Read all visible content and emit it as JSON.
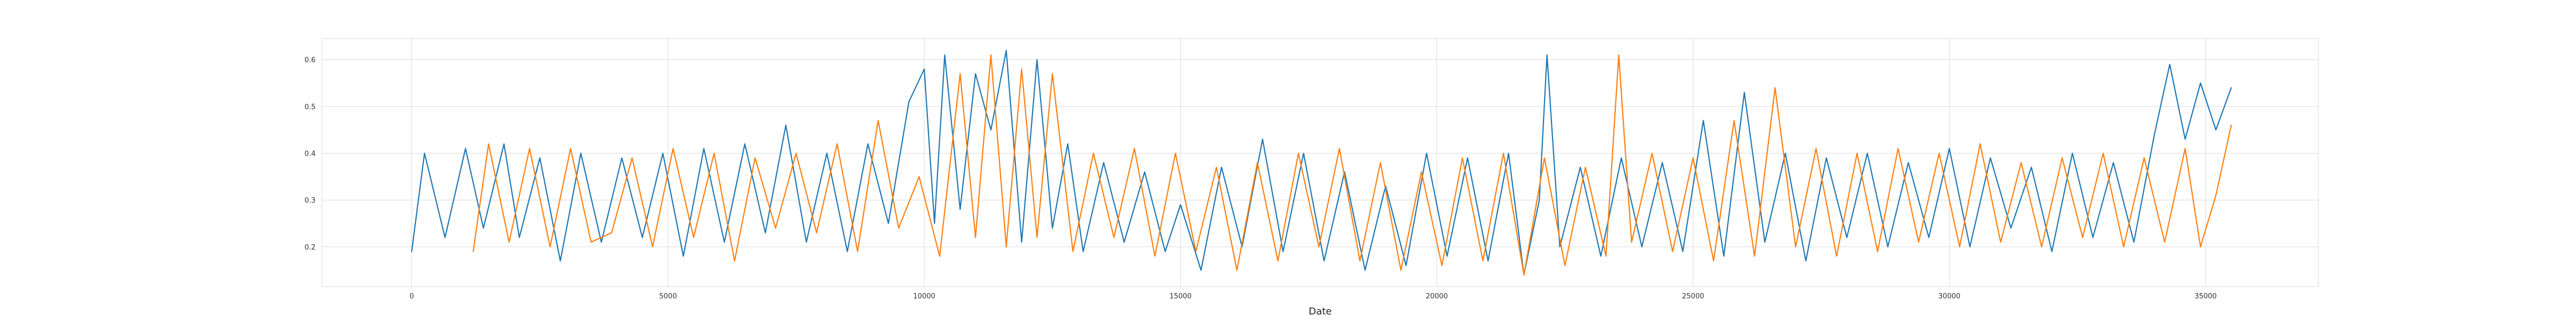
{
  "chart_data": {
    "type": "line",
    "title": "",
    "xlabel": "Date",
    "ylabel": "",
    "xlim": [
      -1750,
      37200
    ],
    "ylim": [
      0.115,
      0.645
    ],
    "grid": true,
    "legend": "none",
    "x_ticks": [
      0,
      5000,
      10000,
      15000,
      20000,
      25000,
      30000,
      35000
    ],
    "x_tick_labels": [
      "0",
      "5000",
      "10000",
      "15000",
      "20000",
      "25000",
      "30000",
      "35000"
    ],
    "y_ticks": [
      0.2,
      0.3,
      0.4,
      0.5,
      0.6
    ],
    "y_tick_labels": [
      "0.2",
      "0.3",
      "0.4",
      "0.5",
      "0.6"
    ],
    "series": [
      {
        "color": "#1f77b4",
        "x": [
          0,
          250,
          650,
          1050,
          1400,
          1800,
          2100,
          2500,
          2900,
          3300,
          3700,
          4100,
          4500,
          4900,
          5300,
          5700,
          6100,
          6500,
          6900,
          7300,
          7700,
          8100,
          8500,
          8900,
          9300,
          9700,
          10000,
          10200,
          10400,
          10700,
          11000,
          11300,
          11600,
          11900,
          12200,
          12500,
          12800,
          13100,
          13500,
          13900,
          14300,
          14700,
          15000,
          15400,
          15800,
          16200,
          16600,
          17000,
          17400,
          17800,
          18200,
          18600,
          19000,
          19400,
          19800,
          20200,
          20600,
          21000,
          21400,
          21700,
          22000,
          22150,
          22400,
          22800,
          23200,
          23600,
          24000,
          24400,
          24800,
          25200,
          25600,
          26000,
          26400,
          26800,
          27200,
          27600,
          28000,
          28400,
          28800,
          29200,
          29600,
          30000,
          30400,
          30800,
          31200,
          31600,
          32000,
          32400,
          32800,
          33200,
          33600,
          34000,
          34300,
          34600,
          34900,
          35200,
          35500
        ],
        "values": [
          0.19,
          0.4,
          0.22,
          0.41,
          0.24,
          0.42,
          0.22,
          0.39,
          0.17,
          0.4,
          0.21,
          0.39,
          0.22,
          0.4,
          0.18,
          0.41,
          0.21,
          0.42,
          0.23,
          0.46,
          0.21,
          0.4,
          0.19,
          0.42,
          0.25,
          0.51,
          0.58,
          0.25,
          0.61,
          0.28,
          0.57,
          0.45,
          0.62,
          0.21,
          0.6,
          0.24,
          0.42,
          0.19,
          0.38,
          0.21,
          0.36,
          0.19,
          0.29,
          0.15,
          0.37,
          0.2,
          0.43,
          0.19,
          0.4,
          0.17,
          0.36,
          0.15,
          0.33,
          0.16,
          0.4,
          0.18,
          0.39,
          0.17,
          0.4,
          0.14,
          0.3,
          0.61,
          0.2,
          0.37,
          0.18,
          0.39,
          0.2,
          0.38,
          0.19,
          0.47,
          0.18,
          0.53,
          0.21,
          0.4,
          0.17,
          0.39,
          0.22,
          0.4,
          0.2,
          0.38,
          0.22,
          0.41,
          0.2,
          0.39,
          0.24,
          0.37,
          0.19,
          0.4,
          0.22,
          0.38,
          0.21,
          0.44,
          0.59,
          0.43,
          0.55,
          0.45,
          0.54
        ]
      },
      {
        "color": "#ff7f0e",
        "x": [
          1200,
          1500,
          1900,
          2300,
          2700,
          3100,
          3500,
          3900,
          4300,
          4700,
          5100,
          5500,
          5900,
          6300,
          6700,
          7100,
          7500,
          7900,
          8300,
          8700,
          9100,
          9500,
          9900,
          10300,
          10700,
          11000,
          11300,
          11600,
          11900,
          12200,
          12500,
          12900,
          13300,
          13700,
          14100,
          14500,
          14900,
          15300,
          15700,
          16100,
          16500,
          16900,
          17300,
          17700,
          18100,
          18500,
          18900,
          19300,
          19700,
          20100,
          20500,
          20900,
          21300,
          21700,
          22100,
          22500,
          22900,
          23300,
          23550,
          23800,
          24200,
          24600,
          25000,
          25400,
          25800,
          26200,
          26600,
          27000,
          27400,
          27800,
          28200,
          28600,
          29000,
          29400,
          29800,
          30200,
          30600,
          31000,
          31400,
          31800,
          32200,
          32600,
          33000,
          33400,
          33800,
          34200,
          34600,
          34900,
          35200,
          35500
        ],
        "values": [
          0.19,
          0.42,
          0.21,
          0.41,
          0.2,
          0.41,
          0.21,
          0.23,
          0.39,
          0.2,
          0.41,
          0.22,
          0.4,
          0.17,
          0.39,
          0.24,
          0.4,
          0.23,
          0.42,
          0.19,
          0.47,
          0.24,
          0.35,
          0.18,
          0.57,
          0.22,
          0.61,
          0.2,
          0.58,
          0.22,
          0.57,
          0.19,
          0.4,
          0.22,
          0.41,
          0.18,
          0.4,
          0.19,
          0.37,
          0.15,
          0.38,
          0.17,
          0.4,
          0.2,
          0.41,
          0.17,
          0.38,
          0.15,
          0.36,
          0.16,
          0.39,
          0.17,
          0.4,
          0.14,
          0.39,
          0.16,
          0.37,
          0.18,
          0.61,
          0.21,
          0.4,
          0.19,
          0.39,
          0.17,
          0.47,
          0.18,
          0.54,
          0.2,
          0.41,
          0.18,
          0.4,
          0.19,
          0.41,
          0.21,
          0.4,
          0.2,
          0.42,
          0.21,
          0.38,
          0.2,
          0.39,
          0.22,
          0.4,
          0.2,
          0.39,
          0.21,
          0.41,
          0.2,
          0.31,
          0.46
        ]
      }
    ]
  }
}
